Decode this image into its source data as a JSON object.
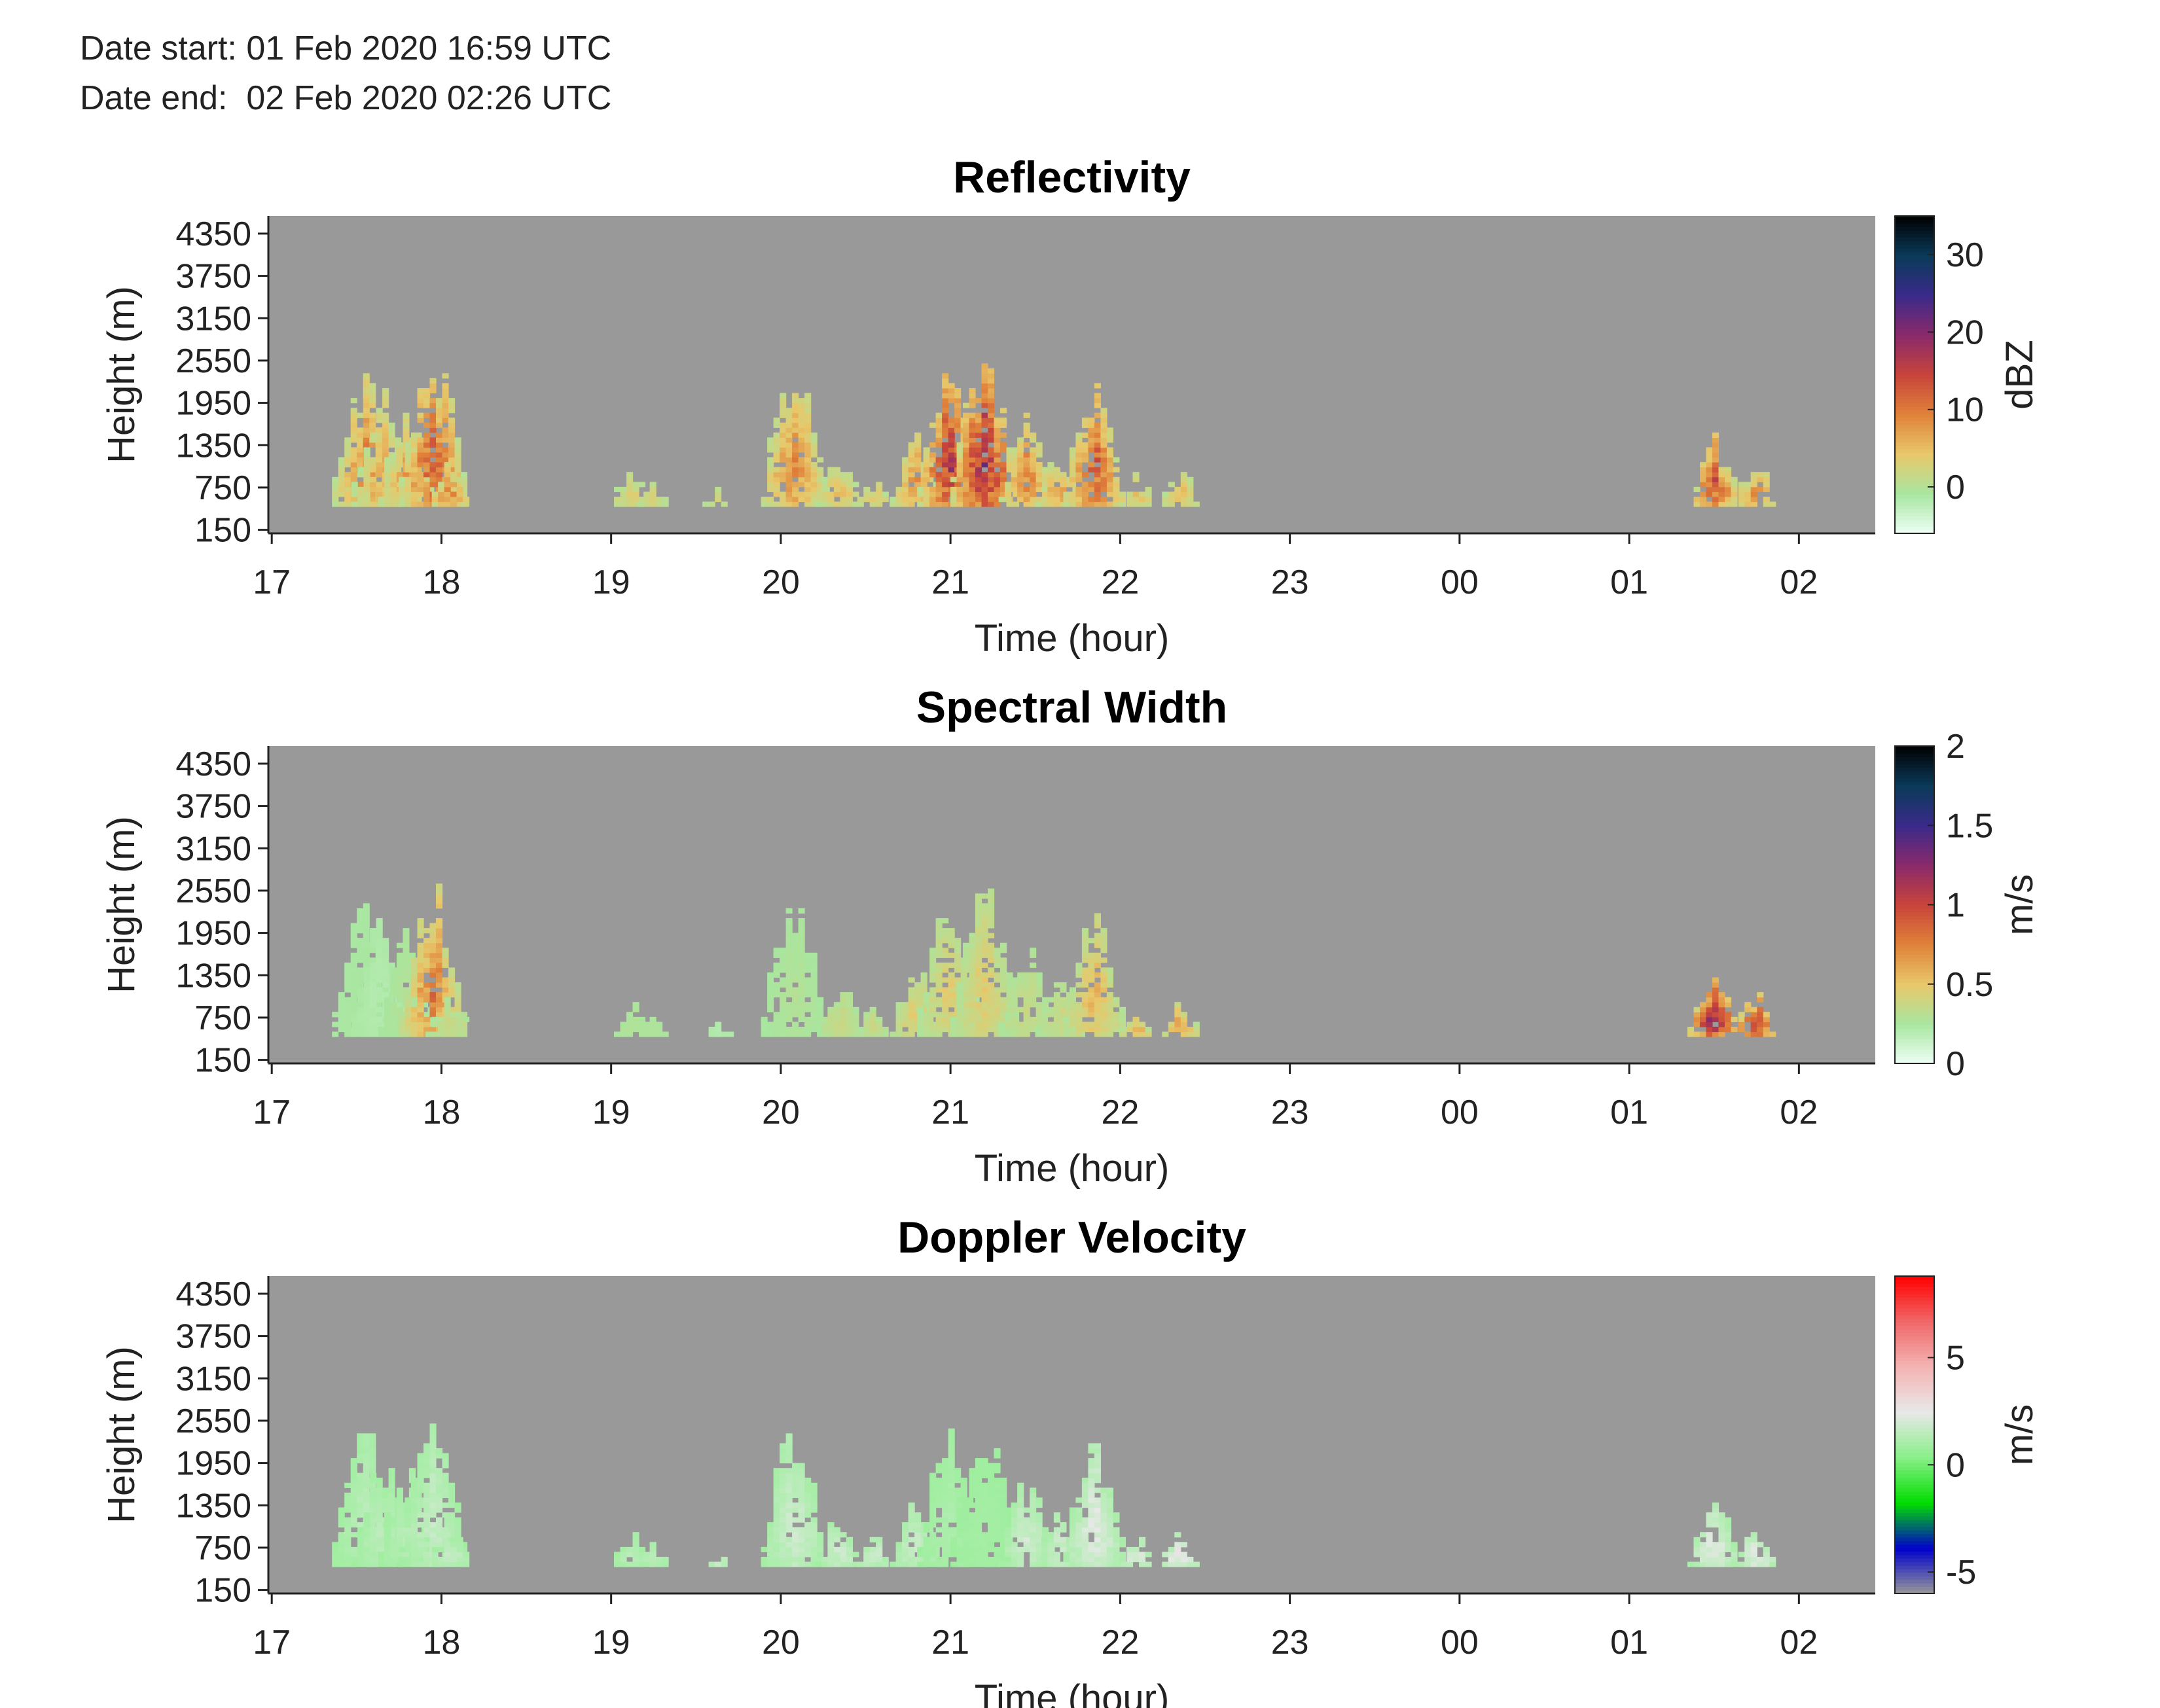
{
  "header": {
    "date_start": "Date start: 01 Feb 2020 16:59 UTC",
    "date_end": "Date end:  02 Feb 2020 02:26 UTC"
  },
  "chart_data": [
    {
      "type": "heatmap",
      "title": "Reflectivity",
      "xlabel": "Time (hour)",
      "ylabel": "Height (m)",
      "x_ticks": [
        "17",
        "18",
        "19",
        "20",
        "21",
        "22",
        "23",
        "00",
        "01",
        "02"
      ],
      "xlim_hours": [
        16.98,
        26.45
      ],
      "y_ticks": [
        150,
        750,
        1350,
        1950,
        2550,
        3150,
        3750,
        4350
      ],
      "ylim": [
        100,
        4600
      ],
      "colorbar": {
        "label": "dBZ",
        "ticks": [
          0,
          10,
          20,
          30
        ],
        "range": [
          -6,
          35
        ],
        "colors": [
          "#eefff6",
          "#a8e6a0",
          "#e8c86a",
          "#e0823a",
          "#c8443a",
          "#8a2a6a",
          "#3a2a8a",
          "#0a3a5a",
          "#000000"
        ]
      },
      "background": "#999999",
      "echoes": [
        {
          "x": 17.55,
          "top": 2450,
          "peak": 10
        },
        {
          "x": 17.65,
          "top": 2100,
          "peak": 7
        },
        {
          "x": 17.8,
          "top": 1900,
          "peak": 8
        },
        {
          "x": 17.95,
          "top": 2650,
          "peak": 14
        },
        {
          "x": 18.05,
          "top": 1100,
          "peak": 10
        },
        {
          "x": 19.12,
          "top": 1000,
          "peak": 4
        },
        {
          "x": 19.25,
          "top": 800,
          "peak": 4
        },
        {
          "x": 19.63,
          "top": 700,
          "peak": 3
        },
        {
          "x": 20.08,
          "top": 2500,
          "peak": 10
        },
        {
          "x": 20.35,
          "top": 1200,
          "peak": 6
        },
        {
          "x": 20.55,
          "top": 900,
          "peak": 5
        },
        {
          "x": 20.8,
          "top": 1500,
          "peak": 9
        },
        {
          "x": 21.0,
          "top": 2500,
          "peak": 18
        },
        {
          "x": 21.2,
          "top": 2600,
          "peak": 20
        },
        {
          "x": 21.45,
          "top": 1700,
          "peak": 10
        },
        {
          "x": 21.65,
          "top": 1300,
          "peak": 8
        },
        {
          "x": 21.85,
          "top": 2200,
          "peak": 14
        },
        {
          "x": 22.1,
          "top": 900,
          "peak": 5
        },
        {
          "x": 22.35,
          "top": 1000,
          "peak": 6
        },
        {
          "x": 25.5,
          "top": 1450,
          "peak": 14
        },
        {
          "x": 25.75,
          "top": 1100,
          "peak": 10
        }
      ]
    },
    {
      "type": "heatmap",
      "title": "Spectral Width",
      "xlabel": "Time (hour)",
      "ylabel": "Height (m)",
      "x_ticks": [
        "17",
        "18",
        "19",
        "20",
        "21",
        "22",
        "23",
        "00",
        "01",
        "02"
      ],
      "xlim_hours": [
        16.98,
        26.45
      ],
      "y_ticks": [
        150,
        750,
        1350,
        1950,
        2550,
        3150,
        3750,
        4350
      ],
      "ylim": [
        100,
        4600
      ],
      "colorbar": {
        "label": "m/s",
        "ticks": [
          "0",
          "0.5",
          "1",
          "1.5",
          "2"
        ],
        "range": [
          0,
          2
        ],
        "colors": [
          "#eefff6",
          "#a8e6a0",
          "#e8c86a",
          "#e0823a",
          "#c8443a",
          "#8a2a6a",
          "#3a2a8a",
          "#0a3a5a",
          "#000000"
        ]
      },
      "background": "#999999",
      "echoes": [
        {
          "x": 17.55,
          "top": 2450,
          "peak": 0.25
        },
        {
          "x": 17.65,
          "top": 2100,
          "peak": 0.2
        },
        {
          "x": 17.8,
          "top": 1900,
          "peak": 0.3
        },
        {
          "x": 17.95,
          "top": 2650,
          "peak": 0.8
        },
        {
          "x": 18.05,
          "top": 1100,
          "peak": 0.4
        },
        {
          "x": 19.12,
          "top": 1000,
          "peak": 0.3
        },
        {
          "x": 19.25,
          "top": 800,
          "peak": 0.3
        },
        {
          "x": 19.63,
          "top": 700,
          "peak": 0.2
        },
        {
          "x": 20.08,
          "top": 2500,
          "peak": 0.3
        },
        {
          "x": 20.35,
          "top": 1200,
          "peak": 0.4
        },
        {
          "x": 20.55,
          "top": 900,
          "peak": 0.4
        },
        {
          "x": 20.8,
          "top": 1500,
          "peak": 0.5
        },
        {
          "x": 21.0,
          "top": 2500,
          "peak": 0.5
        },
        {
          "x": 21.2,
          "top": 2600,
          "peak": 0.5
        },
        {
          "x": 21.45,
          "top": 1700,
          "peak": 0.4
        },
        {
          "x": 21.65,
          "top": 1300,
          "peak": 0.4
        },
        {
          "x": 21.85,
          "top": 2200,
          "peak": 0.6
        },
        {
          "x": 22.1,
          "top": 900,
          "peak": 0.6
        },
        {
          "x": 22.35,
          "top": 1000,
          "peak": 0.7
        },
        {
          "x": 25.5,
          "top": 1450,
          "peak": 1.3
        },
        {
          "x": 25.75,
          "top": 1100,
          "peak": 1.1
        }
      ]
    },
    {
      "type": "heatmap",
      "title": "Doppler Velocity",
      "xlabel": "Time (hour)",
      "ylabel": "Height (m)",
      "x_ticks": [
        "17",
        "18",
        "19",
        "20",
        "21",
        "22",
        "23",
        "00",
        "01",
        "02"
      ],
      "xlim_hours": [
        16.98,
        26.45
      ],
      "y_ticks": [
        150,
        750,
        1350,
        1950,
        2550,
        3150,
        3750,
        4350
      ],
      "ylim": [
        100,
        4600
      ],
      "colorbar": {
        "label": "m/s",
        "ticks": [
          "-5",
          "0",
          "5"
        ],
        "range": [
          -6,
          8.8
        ],
        "colors": [
          "#999999",
          "#0000cc",
          "#00dd00",
          "#88f088",
          "#e8e8e8",
          "#f4b4b4",
          "#f06868",
          "#ff0000"
        ]
      },
      "background": "#999999",
      "echoes": [
        {
          "x": 17.55,
          "top": 2450,
          "peak": 1.5
        },
        {
          "x": 17.65,
          "top": 2100,
          "peak": 1.5
        },
        {
          "x": 17.8,
          "top": 1900,
          "peak": 1.5
        },
        {
          "x": 17.95,
          "top": 2650,
          "peak": 1.8
        },
        {
          "x": 18.05,
          "top": 1100,
          "peak": 1.8
        },
        {
          "x": 19.12,
          "top": 1000,
          "peak": 1.5
        },
        {
          "x": 19.25,
          "top": 800,
          "peak": 1.5
        },
        {
          "x": 19.63,
          "top": 700,
          "peak": 2
        },
        {
          "x": 20.08,
          "top": 2500,
          "peak": 2
        },
        {
          "x": 20.35,
          "top": 1200,
          "peak": 2
        },
        {
          "x": 20.55,
          "top": 900,
          "peak": 2
        },
        {
          "x": 20.8,
          "top": 1500,
          "peak": 2
        },
        {
          "x": 21.0,
          "top": 2500,
          "peak": 1.2
        },
        {
          "x": 21.2,
          "top": 2600,
          "peak": 1
        },
        {
          "x": 21.45,
          "top": 1700,
          "peak": 2
        },
        {
          "x": 21.65,
          "top": 1300,
          "peak": 2
        },
        {
          "x": 21.85,
          "top": 2200,
          "peak": 2.5
        },
        {
          "x": 22.1,
          "top": 900,
          "peak": 2.5
        },
        {
          "x": 22.35,
          "top": 1000,
          "peak": 3
        },
        {
          "x": 25.5,
          "top": 1450,
          "peak": 2.5
        },
        {
          "x": 25.75,
          "top": 1100,
          "peak": 2.8
        }
      ]
    }
  ]
}
